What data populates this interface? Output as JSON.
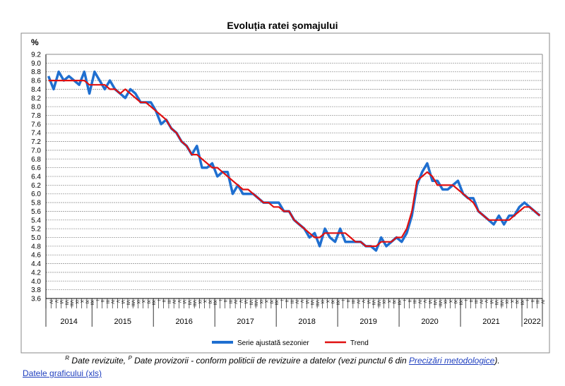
{
  "chart_data": {
    "type": "line",
    "title": "Evoluția ratei șomajului",
    "ylabel": "%",
    "xlabel": "",
    "ylim": [
      3.6,
      9.2
    ],
    "ytick_step": 0.2,
    "grid": true,
    "legend_position": "bottom",
    "start": {
      "year": 2014,
      "month": 4
    },
    "month_labels": [
      "I",
      "II",
      "III",
      "IV",
      "V",
      "VI",
      "VII",
      "VIII",
      "IX",
      "X",
      "XI",
      "XII"
    ],
    "years": [
      "2014",
      "2015",
      "2016",
      "2017",
      "2018",
      "2019",
      "2020",
      "2021",
      "2022"
    ],
    "revised_marker": "R",
    "provisional_marker": "P",
    "series": [
      {
        "name": "Serie ajustată sezonier",
        "color": "#1f6fd0",
        "values": [
          8.7,
          8.4,
          8.8,
          8.6,
          8.7,
          8.6,
          8.5,
          8.8,
          8.3,
          8.8,
          8.6,
          8.4,
          8.6,
          8.4,
          8.3,
          8.2,
          8.4,
          8.3,
          8.1,
          8.1,
          8.1,
          7.9,
          7.6,
          7.7,
          7.5,
          7.4,
          7.2,
          7.1,
          6.9,
          7.1,
          6.6,
          6.6,
          6.7,
          6.4,
          6.5,
          6.5,
          6.0,
          6.2,
          6.0,
          6.0,
          6.0,
          5.9,
          5.8,
          5.8,
          5.8,
          5.8,
          5.6,
          5.6,
          5.4,
          5.3,
          5.2,
          5.0,
          5.1,
          4.8,
          5.2,
          5.0,
          4.9,
          5.2,
          4.9,
          4.9,
          4.9,
          4.9,
          4.8,
          4.8,
          4.7,
          5.0,
          4.8,
          4.9,
          5.0,
          4.9,
          5.1,
          5.5,
          6.2,
          6.5,
          6.7,
          6.3,
          6.3,
          6.1,
          6.1,
          6.2,
          6.3,
          6.0,
          5.9,
          5.9,
          5.6,
          5.5,
          5.4,
          5.3,
          5.5,
          5.3,
          5.5,
          5.5,
          5.7,
          5.8,
          5.7,
          5.6,
          5.5
        ]
      },
      {
        "name": "Trend",
        "color": "#e01010",
        "values": [
          8.6,
          8.6,
          8.6,
          8.6,
          8.6,
          8.6,
          8.6,
          8.6,
          8.5,
          8.5,
          8.5,
          8.5,
          8.4,
          8.4,
          8.3,
          8.4,
          8.3,
          8.2,
          8.1,
          8.1,
          8.0,
          7.9,
          7.8,
          7.7,
          7.5,
          7.4,
          7.2,
          7.1,
          6.9,
          6.9,
          6.8,
          6.7,
          6.6,
          6.6,
          6.5,
          6.4,
          6.3,
          6.2,
          6.1,
          6.1,
          6.0,
          5.9,
          5.8,
          5.8,
          5.7,
          5.7,
          5.6,
          5.6,
          5.4,
          5.3,
          5.2,
          5.1,
          5.0,
          5.0,
          5.1,
          5.1,
          5.1,
          5.1,
          5.1,
          5.0,
          4.9,
          4.9,
          4.8,
          4.8,
          4.8,
          4.9,
          4.9,
          4.9,
          5.0,
          5.0,
          5.2,
          5.6,
          6.3,
          6.4,
          6.5,
          6.4,
          6.2,
          6.2,
          6.2,
          6.2,
          6.1,
          6.0,
          5.9,
          5.8,
          5.6,
          5.5,
          5.4,
          5.4,
          5.4,
          5.4,
          5.4,
          5.5,
          5.6,
          5.7,
          5.7,
          5.6,
          5.5
        ]
      }
    ]
  },
  "footnote": {
    "r_sup": "R",
    "r_text": " Date revizuite, ",
    "p_sup": "P",
    "p_text": " Date provizorii - conform politicii de revizuire a datelor (vezi punctul 6 din ",
    "link_text": "Precizări metodologice",
    "end": ")."
  },
  "data_link": "Datele graficului (xls)"
}
